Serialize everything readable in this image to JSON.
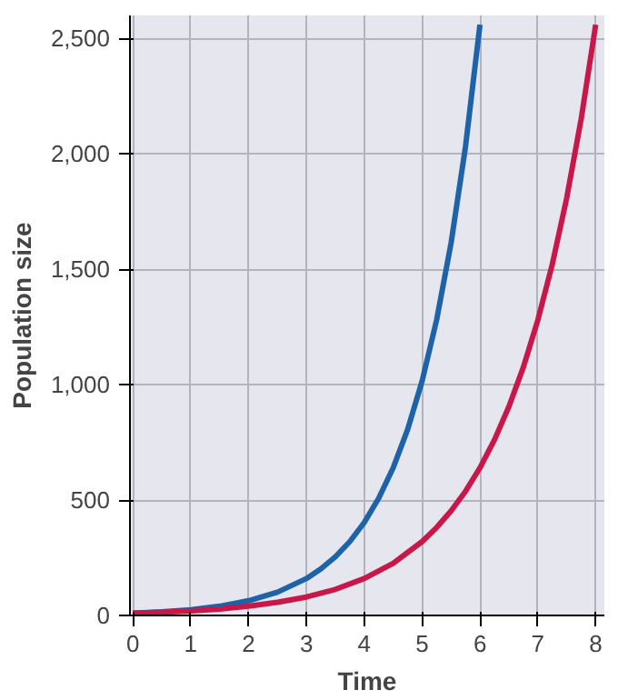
{
  "chart_data": {
    "type": "line",
    "xlabel": "Time",
    "ylabel": "Population size",
    "xlim": [
      -0.05,
      8.15
    ],
    "ylim": [
      0,
      2600
    ],
    "xticks": [
      0,
      1,
      2,
      3,
      4,
      5,
      6,
      7,
      8
    ],
    "yticks": [
      0,
      500,
      {
        "value": 1000,
        "label": "1,000"
      },
      {
        "value": 1500,
        "label": "1,500"
      },
      {
        "value": 2000,
        "label": "2,000"
      },
      {
        "value": 2500,
        "label": "2,500"
      }
    ],
    "grid": true,
    "line_style": "solid",
    "series": [
      {
        "color": "#1e63a8",
        "x": [
          0,
          0.5,
          1,
          1.5,
          2,
          2.5,
          3,
          3.25,
          3.5,
          3.75,
          4,
          4.25,
          4.5,
          4.75,
          5,
          5.25,
          5.5,
          5.75,
          6
        ],
        "values": [
          10,
          16,
          25,
          40,
          64,
          101,
          160,
          202,
          254,
          320,
          403,
          508,
          640,
          806,
          1016,
          1280,
          1613,
          2032,
          2560
        ]
      },
      {
        "color": "#c8184a",
        "x": [
          0,
          0.5,
          1,
          1.5,
          2,
          2.5,
          3,
          3.5,
          4,
          4.5,
          5,
          5.25,
          5.5,
          5.75,
          6,
          6.25,
          6.5,
          6.75,
          7,
          7.25,
          7.5,
          7.75,
          8
        ],
        "values": [
          10,
          14,
          20,
          28,
          40,
          57,
          80,
          113,
          160,
          226,
          320,
          381,
          453,
          538,
          640,
          761,
          905,
          1076,
          1280,
          1522,
          1810,
          2153,
          2560
        ]
      }
    ]
  }
}
